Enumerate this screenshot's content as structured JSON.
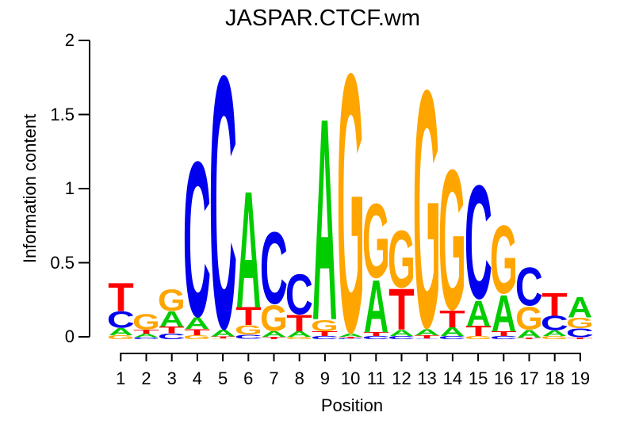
{
  "chart_data": {
    "type": "sequence_logo",
    "title": "JASPAR.CTCF.wm",
    "xlabel": "Position",
    "ylabel": "Information content",
    "ylim": [
      0,
      2
    ],
    "yticks": [
      "0",
      "0.5",
      "1",
      "1.5",
      "2"
    ],
    "xticks": [
      "1",
      "2",
      "3",
      "4",
      "5",
      "6",
      "7",
      "8",
      "9",
      "10",
      "11",
      "12",
      "13",
      "14",
      "15",
      "16",
      "17",
      "18",
      "19"
    ],
    "grid": false,
    "legend": "none",
    "base_colors": {
      "A": "#00CC00",
      "C": "#0000EE",
      "G": "#FFA500",
      "T": "#FF0000"
    },
    "positions": [
      {
        "position": 1,
        "letters": [
          {
            "base": "T",
            "ic": 0.195
          },
          {
            "base": "C",
            "ic": 0.115
          },
          {
            "base": "A",
            "ic": 0.048
          },
          {
            "base": "G",
            "ic": 0.027
          }
        ]
      },
      {
        "position": 2,
        "letters": [
          {
            "base": "G",
            "ic": 0.11
          },
          {
            "base": "T",
            "ic": 0.028
          },
          {
            "base": "A",
            "ic": 0.023
          },
          {
            "base": "C",
            "ic": 0.015
          }
        ]
      },
      {
        "position": 3,
        "letters": [
          {
            "base": "G",
            "ic": 0.151
          },
          {
            "base": "A",
            "ic": 0.107
          },
          {
            "base": "T",
            "ic": 0.045
          },
          {
            "base": "C",
            "ic": 0.039
          }
        ]
      },
      {
        "position": 4,
        "letters": [
          {
            "base": "C",
            "ic": 1.093
          },
          {
            "base": "A",
            "ic": 0.08
          },
          {
            "base": "T",
            "ic": 0.043
          },
          {
            "base": "G",
            "ic": 0.027
          }
        ]
      },
      {
        "position": 5,
        "letters": [
          {
            "base": "C",
            "ic": 1.78
          },
          {
            "base": "A",
            "ic": 0.045
          },
          {
            "base": "T",
            "ic": 0.015
          },
          {
            "base": "G",
            "ic": 0.005
          }
        ]
      },
      {
        "position": 6,
        "letters": [
          {
            "base": "A",
            "ic": 0.807
          },
          {
            "base": "T",
            "ic": 0.123
          },
          {
            "base": "G",
            "ic": 0.064
          },
          {
            "base": "C",
            "ic": 0.03
          }
        ]
      },
      {
        "position": 7,
        "letters": [
          {
            "base": "C",
            "ic": 0.507
          },
          {
            "base": "G",
            "ic": 0.181
          },
          {
            "base": "A",
            "ic": 0.037
          },
          {
            "base": "T",
            "ic": 0.016
          }
        ]
      },
      {
        "position": 8,
        "letters": [
          {
            "base": "C",
            "ic": 0.283
          },
          {
            "base": "T",
            "ic": 0.112
          },
          {
            "base": "A",
            "ic": 0.037
          },
          {
            "base": "G",
            "ic": 0.016
          }
        ]
      },
      {
        "position": 9,
        "letters": [
          {
            "base": "A",
            "ic": 1.394
          },
          {
            "base": "G",
            "ic": 0.08
          },
          {
            "base": "T",
            "ic": 0.032
          },
          {
            "base": "C",
            "ic": 0.021
          }
        ]
      },
      {
        "position": 10,
        "letters": [
          {
            "base": "G",
            "ic": 1.823
          },
          {
            "base": "A",
            "ic": 0.021
          },
          {
            "base": "T",
            "ic": 0.012
          },
          {
            "base": "C",
            "ic": 0.006
          }
        ]
      },
      {
        "position": 11,
        "letters": [
          {
            "base": "G",
            "ic": 0.524
          },
          {
            "base": "A",
            "ic": 0.363
          },
          {
            "base": "T",
            "ic": 0.027
          },
          {
            "base": "C",
            "ic": 0.021
          }
        ]
      },
      {
        "position": 12,
        "letters": [
          {
            "base": "G",
            "ic": 0.402
          },
          {
            "base": "T",
            "ic": 0.283
          },
          {
            "base": "A",
            "ic": 0.043
          },
          {
            "base": "C",
            "ic": 0.021
          }
        ]
      },
      {
        "position": 13,
        "letters": [
          {
            "base": "G",
            "ic": 1.673
          },
          {
            "base": "A",
            "ic": 0.043
          },
          {
            "base": "T",
            "ic": 0.021
          },
          {
            "base": "C",
            "ic": 0.005
          }
        ]
      },
      {
        "position": 14,
        "letters": [
          {
            "base": "G",
            "ic": 0.987
          },
          {
            "base": "T",
            "ic": 0.117
          },
          {
            "base": "A",
            "ic": 0.059
          },
          {
            "base": "C",
            "ic": 0.021
          }
        ]
      },
      {
        "position": 15,
        "letters": [
          {
            "base": "C",
            "ic": 0.8
          },
          {
            "base": "A",
            "ic": 0.178
          },
          {
            "base": "T",
            "ic": 0.069
          },
          {
            "base": "G",
            "ic": 0.021
          }
        ]
      },
      {
        "position": 16,
        "letters": [
          {
            "base": "G",
            "ic": 0.48
          },
          {
            "base": "A",
            "ic": 0.251
          },
          {
            "base": "T",
            "ic": 0.032
          },
          {
            "base": "C",
            "ic": 0.021
          }
        ]
      },
      {
        "position": 17,
        "letters": [
          {
            "base": "C",
            "ic": 0.267
          },
          {
            "base": "G",
            "ic": 0.16
          },
          {
            "base": "A",
            "ic": 0.053
          },
          {
            "base": "T",
            "ic": 0.012
          }
        ]
      },
      {
        "position": 18,
        "letters": [
          {
            "base": "T",
            "ic": 0.158
          },
          {
            "base": "C",
            "ic": 0.101
          },
          {
            "base": "A",
            "ic": 0.037
          },
          {
            "base": "G",
            "ic": 0.021
          }
        ]
      },
      {
        "position": 19,
        "letters": [
          {
            "base": "A",
            "ic": 0.142
          },
          {
            "base": "G",
            "ic": 0.071
          },
          {
            "base": "C",
            "ic": 0.062
          },
          {
            "base": "T",
            "ic": 0.012
          }
        ]
      }
    ]
  }
}
